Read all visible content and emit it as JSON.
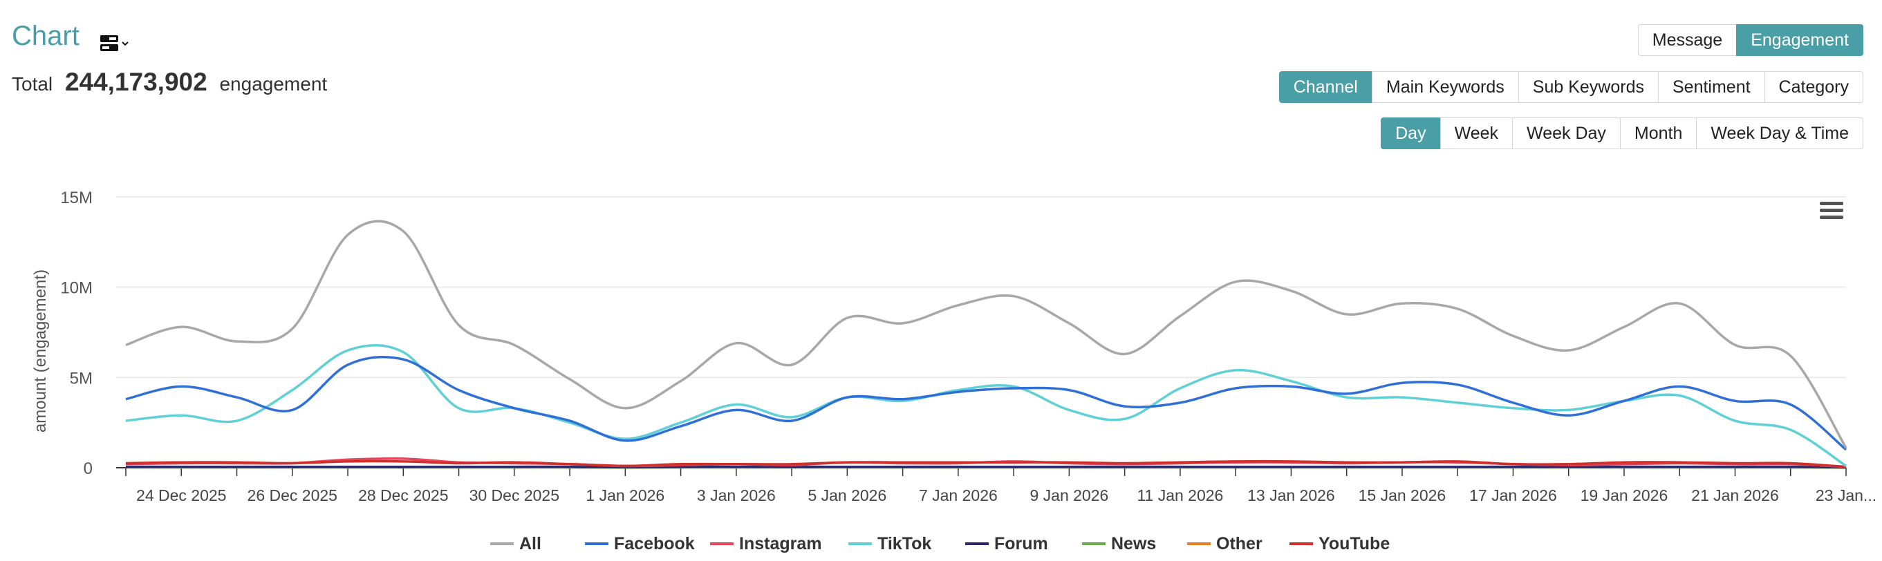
{
  "header": {
    "title": "Chart",
    "total_prefix": "Total",
    "total_value": "244,173,902",
    "total_suffix": "engagement"
  },
  "metric_tabs": [
    {
      "label": "Message",
      "active": false
    },
    {
      "label": "Engagement",
      "active": true
    }
  ],
  "group_tabs": [
    {
      "label": "Channel",
      "active": true
    },
    {
      "label": "Main Keywords",
      "active": false
    },
    {
      "label": "Sub Keywords",
      "active": false
    },
    {
      "label": "Sentiment",
      "active": false
    },
    {
      "label": "Category",
      "active": false
    }
  ],
  "period_tabs": [
    {
      "label": "Day",
      "active": true
    },
    {
      "label": "Week",
      "active": false
    },
    {
      "label": "Week Day",
      "active": false
    },
    {
      "label": "Month",
      "active": false
    },
    {
      "label": "Week Day & Time",
      "active": false
    }
  ],
  "chart_data": {
    "type": "line",
    "title": "",
    "xlabel": "",
    "ylabel": "amount (engagement)",
    "ylim": [
      0,
      15000000
    ],
    "yticks": [
      0,
      5000000,
      10000000,
      15000000
    ],
    "ytick_labels": [
      "0",
      "5M",
      "10M",
      "15M"
    ],
    "categories": [
      "23 Dec 2025",
      "24 Dec 2025",
      "25 Dec 2025",
      "26 Dec 2025",
      "27 Dec 2025",
      "28 Dec 2025",
      "29 Dec 2025",
      "30 Dec 2025",
      "31 Dec 2025",
      "1 Jan 2026",
      "2 Jan 2026",
      "3 Jan 2026",
      "4 Jan 2026",
      "5 Jan 2026",
      "6 Jan 2026",
      "7 Jan 2026",
      "8 Jan 2026",
      "9 Jan 2026",
      "10 Jan 2026",
      "11 Jan 2026",
      "12 Jan 2026",
      "13 Jan 2026",
      "14 Jan 2026",
      "15 Jan 2026",
      "16 Jan 2026",
      "17 Jan 2026",
      "18 Jan 2026",
      "19 Jan 2026",
      "20 Jan 2026",
      "21 Jan 2026",
      "22 Jan 2026",
      "23 Jan 2026"
    ],
    "x_tick_labels": [
      "24 Dec 2025",
      "26 Dec 2025",
      "28 Dec 2025",
      "30 Dec 2025",
      "1 Jan 2026",
      "3 Jan 2026",
      "5 Jan 2026",
      "7 Jan 2026",
      "9 Jan 2026",
      "11 Jan 2026",
      "13 Jan 2026",
      "15 Jan 2026",
      "17 Jan 2026",
      "19 Jan 2026",
      "21 Jan 2026",
      "23 Jan..."
    ],
    "legend_position": "bottom-center",
    "series": [
      {
        "name": "All",
        "color": "#a8a8a8",
        "values": [
          6800000,
          7800000,
          7000000,
          7700000,
          12900000,
          13100000,
          7900000,
          6800000,
          4900000,
          3300000,
          4800000,
          6900000,
          5700000,
          8300000,
          8000000,
          9000000,
          9500000,
          8000000,
          6300000,
          8400000,
          10300000,
          9800000,
          8500000,
          9100000,
          8800000,
          7300000,
          6500000,
          7800000,
          9100000,
          6800000,
          6200000,
          1100000
        ]
      },
      {
        "name": "Facebook",
        "color": "#2f6fd6",
        "values": [
          3800000,
          4500000,
          3900000,
          3200000,
          5700000,
          6000000,
          4300000,
          3300000,
          2600000,
          1500000,
          2300000,
          3200000,
          2600000,
          3900000,
          3800000,
          4200000,
          4400000,
          4300000,
          3400000,
          3600000,
          4400000,
          4500000,
          4100000,
          4700000,
          4600000,
          3600000,
          2900000,
          3700000,
          4500000,
          3700000,
          3500000,
          1000000
        ]
      },
      {
        "name": "Instagram",
        "color": "#e5455a",
        "values": [
          200000,
          250000,
          250000,
          250000,
          450000,
          500000,
          300000,
          250000,
          200000,
          100000,
          150000,
          200000,
          150000,
          300000,
          250000,
          250000,
          350000,
          250000,
          200000,
          250000,
          300000,
          300000,
          250000,
          300000,
          300000,
          200000,
          150000,
          200000,
          250000,
          200000,
          200000,
          50000
        ]
      },
      {
        "name": "TikTok",
        "color": "#5fd0d6",
        "values": [
          2600000,
          2900000,
          2600000,
          4300000,
          6500000,
          6400000,
          3300000,
          3300000,
          2500000,
          1600000,
          2500000,
          3500000,
          2800000,
          3900000,
          3700000,
          4300000,
          4500000,
          3200000,
          2700000,
          4400000,
          5400000,
          4800000,
          3900000,
          3900000,
          3600000,
          3300000,
          3200000,
          3700000,
          4000000,
          2600000,
          2100000,
          100000
        ]
      },
      {
        "name": "Forum",
        "color": "#2a2a6a",
        "values": [
          50000,
          50000,
          50000,
          50000,
          50000,
          50000,
          50000,
          50000,
          50000,
          30000,
          50000,
          50000,
          50000,
          50000,
          50000,
          50000,
          50000,
          50000,
          50000,
          50000,
          50000,
          50000,
          50000,
          50000,
          50000,
          50000,
          50000,
          50000,
          50000,
          50000,
          50000,
          20000
        ]
      },
      {
        "name": "News",
        "color": "#6aa84f",
        "values": [
          20000,
          20000,
          20000,
          20000,
          20000,
          20000,
          20000,
          20000,
          20000,
          10000,
          20000,
          20000,
          20000,
          20000,
          20000,
          20000,
          20000,
          20000,
          20000,
          20000,
          20000,
          20000,
          20000,
          20000,
          20000,
          20000,
          20000,
          20000,
          20000,
          20000,
          20000,
          10000
        ]
      },
      {
        "name": "Other",
        "color": "#e67e22",
        "values": [
          30000,
          30000,
          30000,
          30000,
          30000,
          30000,
          30000,
          30000,
          30000,
          20000,
          30000,
          30000,
          30000,
          30000,
          30000,
          30000,
          30000,
          30000,
          30000,
          30000,
          30000,
          30000,
          30000,
          30000,
          30000,
          30000,
          30000,
          30000,
          30000,
          30000,
          30000,
          10000
        ]
      },
      {
        "name": "YouTube",
        "color": "#d0302c",
        "values": [
          250000,
          300000,
          300000,
          250000,
          350000,
          350000,
          250000,
          300000,
          200000,
          100000,
          200000,
          200000,
          200000,
          300000,
          300000,
          300000,
          300000,
          300000,
          250000,
          300000,
          350000,
          350000,
          300000,
          300000,
          350000,
          200000,
          200000,
          300000,
          300000,
          250000,
          250000,
          50000
        ]
      }
    ]
  }
}
